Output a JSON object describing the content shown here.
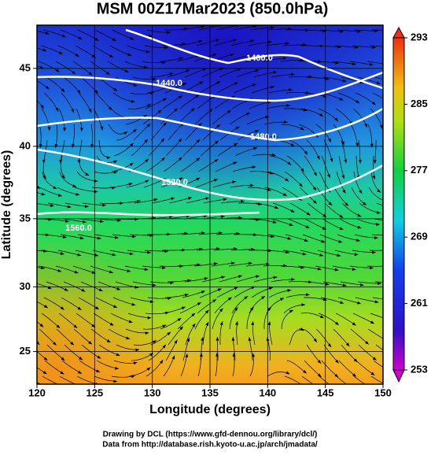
{
  "chart_data": {
    "type": "map",
    "title": "MSM 00Z17Mar2023 (850.0hPa)",
    "x_label": "Longitude (degrees)",
    "y_label": "Latitude  (degrees)",
    "projection": "mercator",
    "xlim": [
      120,
      150
    ],
    "xticks": [
      120,
      125,
      130,
      135,
      140,
      145,
      150
    ],
    "ylim": [
      22.4,
      47.6
    ],
    "yticks": [
      25,
      30,
      35,
      40,
      45
    ],
    "grid": true,
    "colorbar": {
      "lim": [
        253,
        293
      ],
      "ticks": [
        253,
        261,
        269,
        277,
        285,
        293
      ]
    },
    "contours": [
      {
        "value": 1400,
        "label": "1400.0"
      },
      {
        "value": 1440,
        "label": "1440.0"
      },
      {
        "value": 1480,
        "label": "1480.0"
      },
      {
        "value": 1520,
        "label": "1520.0"
      },
      {
        "value": 1560,
        "label": "1560.0"
      }
    ],
    "credits": [
      "Drawing by DCL (https://www.gfd-dennou.org/library/dcl/)",
      "Data from http://database.rish.kyoto-u.ac.jp/arch/jmadata/"
    ]
  }
}
